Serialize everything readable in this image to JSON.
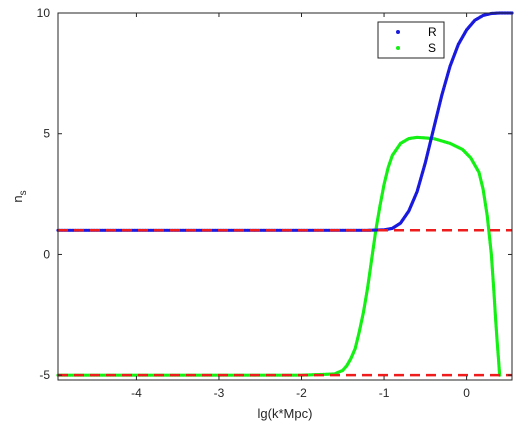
{
  "chart_data": {
    "type": "scatter",
    "title": "",
    "xlabel": "lg(k*Mpc)",
    "ylabel_main": "n",
    "ylabel_sub": "s",
    "xlim": [
      -4.95,
      0.55
    ],
    "ylim": [
      -5.2,
      10
    ],
    "xticks": [
      -4,
      -3,
      -2,
      -1,
      0
    ],
    "xtick_labels": [
      "-4",
      "-3",
      "-2",
      "-1",
      "0"
    ],
    "yticks": [
      -5,
      0,
      5,
      10
    ],
    "ytick_labels": [
      "-5",
      "0",
      "5",
      "10"
    ],
    "grid": false,
    "legend_placement": "top-right",
    "series": [
      {
        "name": "R",
        "color": "#1a1adf",
        "style": "dots",
        "points": [
          [
            -4.95,
            1.0
          ],
          [
            -2.0,
            1.0
          ],
          [
            -1.2,
            1.0
          ],
          [
            -1.0,
            1.02
          ],
          [
            -0.9,
            1.08
          ],
          [
            -0.8,
            1.3
          ],
          [
            -0.7,
            1.8
          ],
          [
            -0.6,
            2.6
          ],
          [
            -0.5,
            3.8
          ],
          [
            -0.4,
            5.2
          ],
          [
            -0.3,
            6.6
          ],
          [
            -0.2,
            7.8
          ],
          [
            -0.1,
            8.7
          ],
          [
            0.0,
            9.3
          ],
          [
            0.1,
            9.7
          ],
          [
            0.2,
            9.9
          ],
          [
            0.3,
            9.98
          ],
          [
            0.4,
            10.0
          ],
          [
            0.55,
            10.0
          ]
        ]
      },
      {
        "name": "S",
        "color": "#14f014",
        "style": "dots",
        "points": [
          [
            -4.95,
            -5.0
          ],
          [
            -2.0,
            -5.0
          ],
          [
            -1.6,
            -4.95
          ],
          [
            -1.5,
            -4.8
          ],
          [
            -1.45,
            -4.6
          ],
          [
            -1.4,
            -4.3
          ],
          [
            -1.35,
            -3.9
          ],
          [
            -1.3,
            -3.2
          ],
          [
            -1.25,
            -2.4
          ],
          [
            -1.2,
            -1.4
          ],
          [
            -1.15,
            -0.2
          ],
          [
            -1.1,
            1.0
          ],
          [
            -1.05,
            2.0
          ],
          [
            -1.0,
            2.9
          ],
          [
            -0.95,
            3.6
          ],
          [
            -0.9,
            4.1
          ],
          [
            -0.8,
            4.6
          ],
          [
            -0.7,
            4.8
          ],
          [
            -0.6,
            4.85
          ],
          [
            -0.4,
            4.8
          ],
          [
            -0.2,
            4.6
          ],
          [
            -0.05,
            4.35
          ],
          [
            0.05,
            4.0
          ],
          [
            0.15,
            3.4
          ],
          [
            0.2,
            2.7
          ],
          [
            0.25,
            1.6
          ],
          [
            0.3,
            0.0
          ],
          [
            0.33,
            -1.5
          ],
          [
            0.35,
            -2.6
          ],
          [
            0.37,
            -3.6
          ],
          [
            0.39,
            -4.5
          ],
          [
            0.4,
            -5.0
          ]
        ]
      },
      {
        "color": "#ee1c1c",
        "style": "dashed",
        "points": [
          [
            -4.95,
            1.0
          ],
          [
            0.55,
            1.0
          ]
        ]
      },
      {
        "color": "#ee1c1c",
        "style": "dashed",
        "points": [
          [
            -4.95,
            -5.0
          ],
          [
            0.55,
            -5.0
          ]
        ]
      }
    ]
  }
}
